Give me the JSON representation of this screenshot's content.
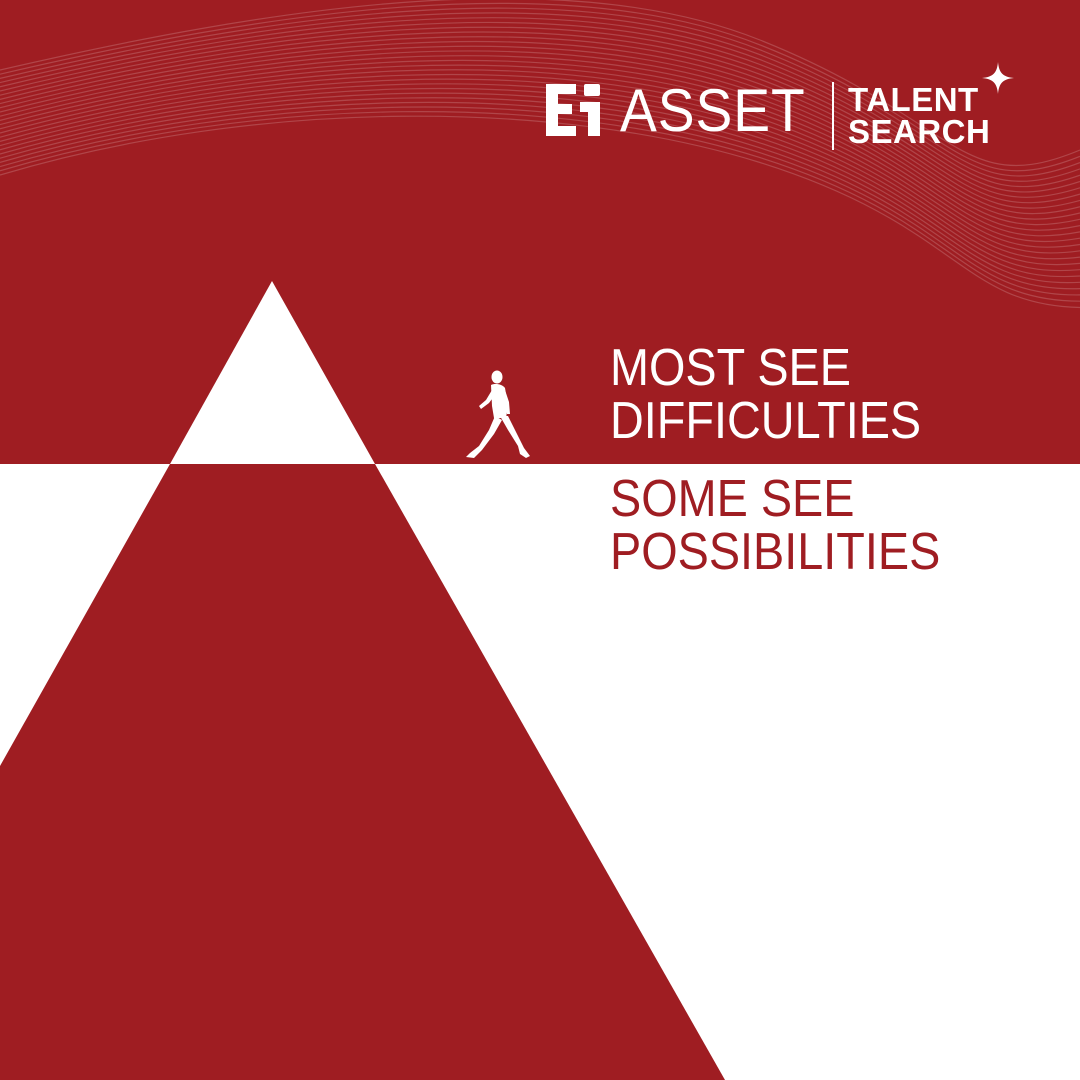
{
  "brand": {
    "wordmark": "ASSET",
    "sub_line_1": "TALENT",
    "sub_line_2": "SEARCH",
    "monogram_icon": "ei-monogram-icon",
    "sparkle_icon": "four-point-star-icon"
  },
  "message": {
    "top_line_1": "MOST SEE",
    "top_line_2": "DIFFICULTIES",
    "bottom_line_1": "SOME SEE",
    "bottom_line_2": "POSSIBILITIES"
  },
  "figure": {
    "icon": "walking-person-icon"
  },
  "colors": {
    "brand_red": "#9f1d22",
    "white": "#ffffff"
  }
}
